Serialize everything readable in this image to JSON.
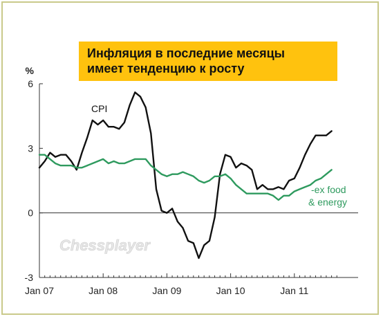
{
  "title_lines": [
    "Инфляция в последние месяцы",
    "имеет тенденцию к росту"
  ],
  "colors": {
    "title_bg": "#ffc20e",
    "frame_border": "#c9c98a",
    "cpi_line": "#111111",
    "core_line": "#2e9a5e"
  },
  "watermark": "Chessplayer",
  "chart_data": {
    "type": "line",
    "ylabel": "%",
    "ylim": [
      -3,
      6
    ],
    "yticks": [
      6,
      3,
      0,
      -3
    ],
    "x_ticks": [
      "Jan 07",
      "Jan 08",
      "Jan 09",
      "Jan 10",
      "Jan 11"
    ],
    "x_range": [
      "Jan 07",
      "Sep 11"
    ],
    "grid": false,
    "series": [
      {
        "name": "CPI",
        "values": [
          [
            "2007-01",
            2.1
          ],
          [
            "2007-02",
            2.4
          ],
          [
            "2007-03",
            2.8
          ],
          [
            "2007-04",
            2.6
          ],
          [
            "2007-05",
            2.7
          ],
          [
            "2007-06",
            2.7
          ],
          [
            "2007-07",
            2.4
          ],
          [
            "2007-08",
            2.0
          ],
          [
            "2007-09",
            2.8
          ],
          [
            "2007-10",
            3.5
          ],
          [
            "2007-11",
            4.3
          ],
          [
            "2007-12",
            4.1
          ],
          [
            "2008-01",
            4.3
          ],
          [
            "2008-02",
            4.0
          ],
          [
            "2008-03",
            4.0
          ],
          [
            "2008-04",
            3.9
          ],
          [
            "2008-05",
            4.2
          ],
          [
            "2008-06",
            5.0
          ],
          [
            "2008-07",
            5.6
          ],
          [
            "2008-08",
            5.4
          ],
          [
            "2008-09",
            4.9
          ],
          [
            "2008-10",
            3.7
          ],
          [
            "2008-11",
            1.1
          ],
          [
            "2008-12",
            0.1
          ],
          [
            "2009-01",
            0.0
          ],
          [
            "2009-02",
            0.2
          ],
          [
            "2009-03",
            -0.4
          ],
          [
            "2009-04",
            -0.7
          ],
          [
            "2009-05",
            -1.3
          ],
          [
            "2009-06",
            -1.4
          ],
          [
            "2009-07",
            -2.1
          ],
          [
            "2009-08",
            -1.5
          ],
          [
            "2009-09",
            -1.3
          ],
          [
            "2009-10",
            -0.2
          ],
          [
            "2009-11",
            1.8
          ],
          [
            "2009-12",
            2.7
          ],
          [
            "2010-01",
            2.6
          ],
          [
            "2010-02",
            2.1
          ],
          [
            "2010-03",
            2.3
          ],
          [
            "2010-04",
            2.2
          ],
          [
            "2010-05",
            2.0
          ],
          [
            "2010-06",
            1.1
          ],
          [
            "2010-07",
            1.3
          ],
          [
            "2010-08",
            1.1
          ],
          [
            "2010-09",
            1.1
          ],
          [
            "2010-10",
            1.2
          ],
          [
            "2010-11",
            1.1
          ],
          [
            "2010-12",
            1.5
          ],
          [
            "2011-01",
            1.6
          ],
          [
            "2011-02",
            2.1
          ],
          [
            "2011-03",
            2.7
          ],
          [
            "2011-04",
            3.2
          ],
          [
            "2011-05",
            3.6
          ],
          [
            "2011-06",
            3.6
          ],
          [
            "2011-07",
            3.6
          ],
          [
            "2011-08",
            3.8
          ]
        ]
      },
      {
        "name": "-ex food\n& energy",
        "values": [
          [
            "2007-01",
            2.7
          ],
          [
            "2007-02",
            2.7
          ],
          [
            "2007-03",
            2.5
          ],
          [
            "2007-04",
            2.3
          ],
          [
            "2007-05",
            2.2
          ],
          [
            "2007-06",
            2.2
          ],
          [
            "2007-07",
            2.2
          ],
          [
            "2007-08",
            2.1
          ],
          [
            "2007-09",
            2.1
          ],
          [
            "2007-10",
            2.2
          ],
          [
            "2007-11",
            2.3
          ],
          [
            "2007-12",
            2.4
          ],
          [
            "2008-01",
            2.5
          ],
          [
            "2008-02",
            2.3
          ],
          [
            "2008-03",
            2.4
          ],
          [
            "2008-04",
            2.3
          ],
          [
            "2008-05",
            2.3
          ],
          [
            "2008-06",
            2.4
          ],
          [
            "2008-07",
            2.5
          ],
          [
            "2008-08",
            2.5
          ],
          [
            "2008-09",
            2.5
          ],
          [
            "2008-10",
            2.2
          ],
          [
            "2008-11",
            2.0
          ],
          [
            "2008-12",
            1.8
          ],
          [
            "2009-01",
            1.7
          ],
          [
            "2009-02",
            1.8
          ],
          [
            "2009-03",
            1.8
          ],
          [
            "2009-04",
            1.9
          ],
          [
            "2009-05",
            1.8
          ],
          [
            "2009-06",
            1.7
          ],
          [
            "2009-07",
            1.5
          ],
          [
            "2009-08",
            1.4
          ],
          [
            "2009-09",
            1.5
          ],
          [
            "2009-10",
            1.7
          ],
          [
            "2009-11",
            1.7
          ],
          [
            "2009-12",
            1.8
          ],
          [
            "2010-01",
            1.6
          ],
          [
            "2010-02",
            1.3
          ],
          [
            "2010-03",
            1.1
          ],
          [
            "2010-04",
            0.9
          ],
          [
            "2010-05",
            0.9
          ],
          [
            "2010-06",
            0.9
          ],
          [
            "2010-07",
            0.9
          ],
          [
            "2010-08",
            0.9
          ],
          [
            "2010-09",
            0.8
          ],
          [
            "2010-10",
            0.6
          ],
          [
            "2010-11",
            0.8
          ],
          [
            "2010-12",
            0.8
          ],
          [
            "2011-01",
            1.0
          ],
          [
            "2011-02",
            1.1
          ],
          [
            "2011-03",
            1.2
          ],
          [
            "2011-04",
            1.3
          ],
          [
            "2011-05",
            1.5
          ],
          [
            "2011-06",
            1.6
          ],
          [
            "2011-07",
            1.8
          ],
          [
            "2011-08",
            2.0
          ]
        ]
      }
    ]
  }
}
